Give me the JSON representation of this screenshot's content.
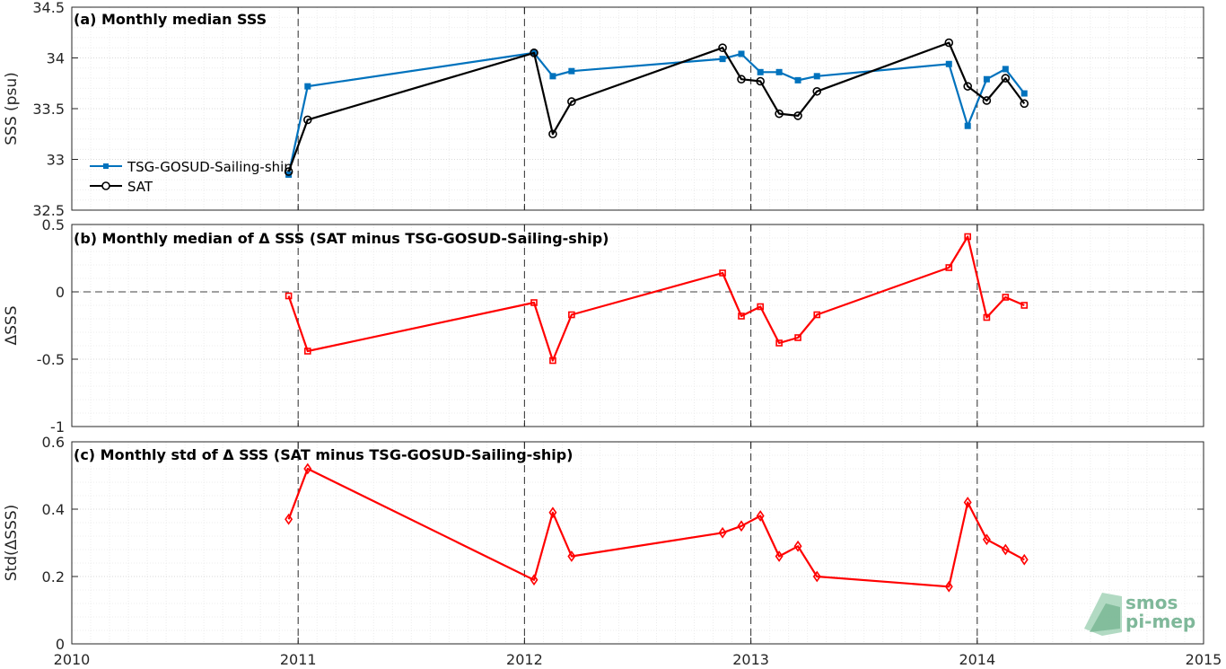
{
  "figure": {
    "x_axis": {
      "min": 2010,
      "max": 2015,
      "tick_labels": [
        "2010",
        "2011",
        "2012",
        "2013",
        "2014",
        "2015"
      ]
    },
    "logo": {
      "line1": "smos",
      "line2": "pi-mep"
    }
  },
  "colors": {
    "tsg": "#0072bd",
    "sat": "#000000",
    "diff": "#ff0000",
    "grid": "#d9d9d9",
    "dashed": "#404040"
  },
  "chart_data": [
    {
      "type": "line",
      "title": "(a) Monthly median SSS",
      "xlabel": "",
      "ylabel": "SSS (psu)",
      "xlim": [
        2010,
        2015
      ],
      "ylim": [
        32.5,
        34.5
      ],
      "y_ticks": [
        32.5,
        33,
        33.5,
        34,
        34.5
      ],
      "y_tick_labels": [
        "32.5",
        "33",
        "33.5",
        "34",
        "34.5"
      ],
      "year_lines": [
        2011,
        2012,
        2013,
        2014
      ],
      "zero_line": null,
      "grid": true,
      "legend": {
        "placement": "middle-left",
        "entries": [
          "TSG-GOSUD-Sailing-ship",
          "SAT"
        ]
      },
      "series": [
        {
          "name": "TSG-GOSUD-Sailing-ship",
          "color": "#0072bd",
          "marker": "square-filled",
          "x": [
            2010.958,
            2011.042,
            2012.042,
            2012.125,
            2012.208,
            2012.875,
            2012.958,
            2013.042,
            2013.125,
            2013.208,
            2013.292,
            2013.875,
            2013.958,
            2014.042,
            2014.125,
            2014.208
          ],
          "values": [
            32.85,
            33.72,
            34.05,
            33.82,
            33.87,
            33.99,
            34.04,
            33.86,
            33.86,
            33.78,
            33.82,
            33.94,
            33.33,
            33.79,
            33.89,
            33.65
          ]
        },
        {
          "name": "SAT",
          "color": "#000000",
          "marker": "circle-open",
          "x": [
            2010.958,
            2011.042,
            2012.042,
            2012.125,
            2012.208,
            2012.875,
            2012.958,
            2013.042,
            2013.125,
            2013.208,
            2013.292,
            2013.875,
            2013.958,
            2014.042,
            2014.125,
            2014.208
          ],
          "values": [
            32.88,
            33.39,
            34.05,
            33.25,
            33.57,
            34.1,
            33.79,
            33.77,
            33.45,
            33.43,
            33.67,
            34.15,
            33.72,
            33.58,
            33.8,
            33.55
          ]
        }
      ]
    },
    {
      "type": "line",
      "title": "(b) Monthly median of Δ SSS (SAT minus TSG-GOSUD-Sailing-ship)",
      "xlabel": "",
      "ylabel": "ΔSSS",
      "xlim": [
        2010,
        2015
      ],
      "ylim": [
        -1,
        0.5
      ],
      "y_ticks": [
        -1,
        -0.5,
        0,
        0.5
      ],
      "y_tick_labels": [
        "-1",
        "-0.5",
        "0",
        "0.5"
      ],
      "year_lines": [
        2011,
        2012,
        2013,
        2014
      ],
      "zero_line": 0,
      "grid": true,
      "legend": null,
      "series": [
        {
          "color": "#ff0000",
          "marker": "square-open",
          "x": [
            2010.958,
            2011.042,
            2012.042,
            2012.125,
            2012.208,
            2012.875,
            2012.958,
            2013.042,
            2013.125,
            2013.208,
            2013.292,
            2013.875,
            2013.958,
            2014.042,
            2014.125,
            2014.208
          ],
          "values": [
            -0.03,
            -0.44,
            -0.08,
            -0.51,
            -0.17,
            0.14,
            -0.18,
            -0.11,
            -0.38,
            -0.34,
            -0.17,
            0.18,
            0.41,
            -0.19,
            -0.04,
            -0.1
          ]
        }
      ]
    },
    {
      "type": "line",
      "title": "(c) Monthly std of Δ SSS (SAT minus TSG-GOSUD-Sailing-ship)",
      "xlabel": "",
      "ylabel": "Std(ΔSSS)",
      "xlim": [
        2010,
        2015
      ],
      "ylim": [
        0,
        0.6
      ],
      "y_ticks": [
        0,
        0.2,
        0.4,
        0.6
      ],
      "y_tick_labels": [
        "0",
        "0.2",
        "0.4",
        "0.6"
      ],
      "year_lines": [
        2011,
        2012,
        2013,
        2014
      ],
      "zero_line": null,
      "grid": true,
      "legend": null,
      "series": [
        {
          "color": "#ff0000",
          "marker": "diamond-open",
          "x": [
            2010.958,
            2011.042,
            2012.042,
            2012.125,
            2012.208,
            2012.875,
            2012.958,
            2013.042,
            2013.125,
            2013.208,
            2013.292,
            2013.875,
            2013.958,
            2014.042,
            2014.125,
            2014.208
          ],
          "values": [
            0.37,
            0.52,
            0.19,
            0.39,
            0.26,
            0.33,
            0.35,
            0.38,
            0.26,
            0.29,
            0.2,
            0.17,
            0.42,
            0.31,
            0.28,
            0.25
          ]
        }
      ]
    }
  ]
}
